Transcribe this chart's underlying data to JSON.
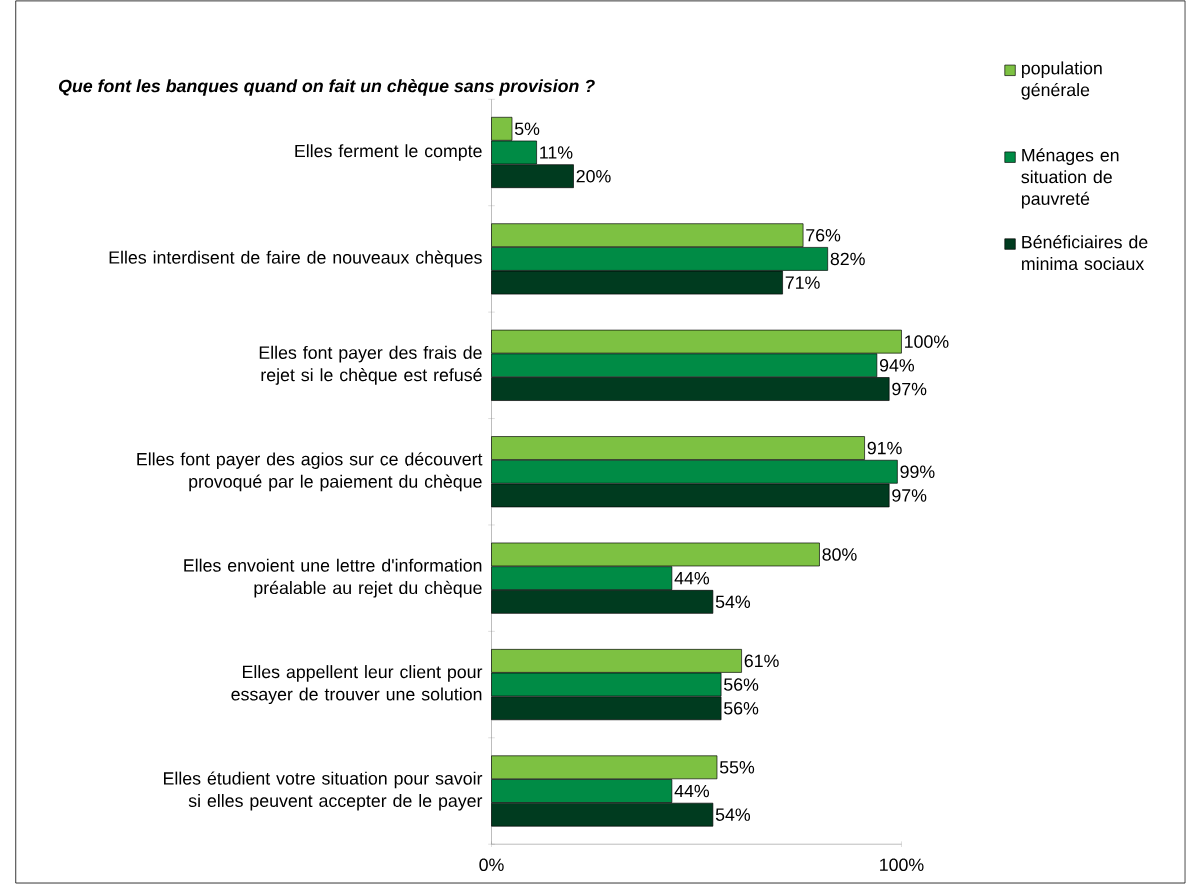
{
  "chart_data": {
    "type": "bar",
    "orientation": "horizontal",
    "title": "Que font les banques quand on fait un chèque sans provision ?",
    "categories": [
      "Elles ferment le compte",
      "Elles interdisent de faire de nouveaux chèques",
      "Elles font payer des frais de rejet si le chèque est refusé",
      "Elles font payer des agios sur ce découvert provoqué par le paiement du chèque",
      "Elles envoient une lettre d'information préalable au rejet du chèque",
      "Elles appellent leur client pour essayer de trouver une solution",
      "Elles étudient votre situation pour savoir si elles peuvent accepter de le payer"
    ],
    "series": [
      {
        "name": "population générale",
        "color": "#7dc142",
        "values": [
          5,
          76,
          100,
          91,
          80,
          61,
          55
        ],
        "value_labels": [
          "5%",
          "76%",
          "100%",
          "91%",
          "80%",
          "61%",
          "55%"
        ]
      },
      {
        "name": "Ménages en situation de pauvreté",
        "color": "#008b45",
        "values": [
          11,
          82,
          94,
          99,
          44,
          56,
          44
        ],
        "value_labels": [
          "11%",
          "82%",
          "94%",
          "99%",
          "44%",
          "56%",
          "44%"
        ]
      },
      {
        "name": "Bénéficiaires de minima sociaux",
        "color": "#003b1f",
        "values": [
          20,
          71,
          97,
          97,
          54,
          56,
          54
        ],
        "value_labels": [
          "20%",
          "71%",
          "97%",
          "97%",
          "54%",
          "56%",
          "54%"
        ]
      }
    ],
    "xlim": [
      0,
      100
    ],
    "xticks": [
      {
        "value": 0,
        "label": "0%"
      },
      {
        "value": 100,
        "label": "100%"
      }
    ],
    "legend": "right",
    "grid": false
  }
}
